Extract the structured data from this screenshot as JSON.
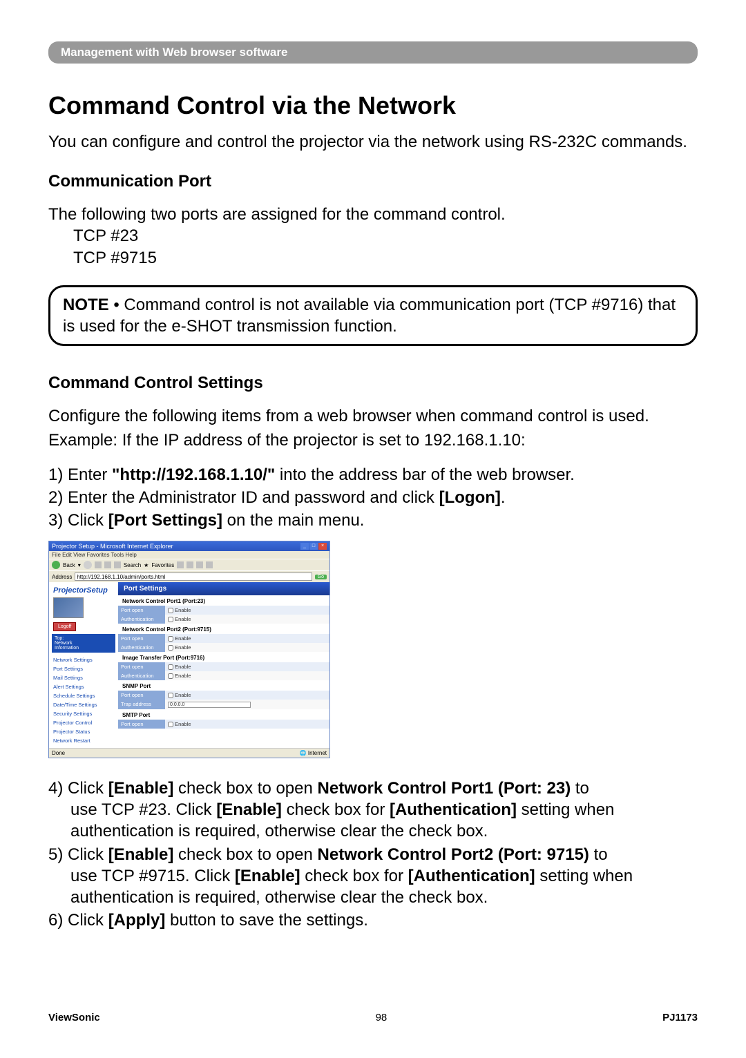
{
  "banner": "Management with Web browser software",
  "title": "Command Control via the Network",
  "intro": "You can configure and control the projector via the network using RS-232C commands.",
  "section_comm_port": {
    "heading": "Communication Port",
    "lead": "The following two ports are assigned for the command control.",
    "ports": [
      "TCP #23",
      "TCP #9715"
    ]
  },
  "note": {
    "label": "NOTE",
    "body": " • Command control is not available via communication port (TCP #9716) that is used for the e-SHOT transmission function."
  },
  "section_settings": {
    "heading": "Command Control Settings",
    "para1": "Configure the following items from a web browser when command control is used.",
    "para2": "Example: If the IP address of the projector is set to 192.168.1.10:",
    "steps_a": [
      {
        "n": "1)",
        "pre": " Enter ",
        "bold": "\"http://192.168.1.10/\"",
        "post": " into the address bar of the web browser."
      },
      {
        "n": "2)",
        "pre": " Enter the Administrator ID and password and click ",
        "bold": "[Logon]",
        "post": "."
      },
      {
        "n": "3)",
        "pre": " Click ",
        "bold": "[Port Settings]",
        "post": " on the main menu."
      }
    ],
    "steps_b": [
      {
        "n": "4)",
        "l1_pre": " Click ",
        "l1_b1": "[Enable]",
        "l1_mid": " check box to open ",
        "l1_b2": "Network Control Port1 (Port: 23)",
        "l1_post": " to",
        "l2_pre": "use TCP #23. Click ",
        "l2_b1": "[Enable]",
        "l2_mid": " check box for ",
        "l2_b2": "[Authentication]",
        "l2_post": " setting when",
        "l3": "authentication is required, otherwise clear the check box."
      },
      {
        "n": "5)",
        "l1_pre": " Click ",
        "l1_b1": "[Enable]",
        "l1_mid": " check box to open ",
        "l1_b2": "Network Control Port2 (Port: 9715)",
        "l1_post": " to",
        "l2_pre": "use TCP #9715. Click ",
        "l2_b1": "[Enable]",
        "l2_mid": " check box for ",
        "l2_b2": "[Authentication]",
        "l2_post": " setting when",
        "l3": "authentication is required, otherwise clear the check box."
      },
      {
        "n": "6)",
        "l1_pre": " Click ",
        "l1_b1": "[Apply]",
        "l1_mid": " button to save the settings.",
        "l1_b2": "",
        "l1_post": ""
      }
    ]
  },
  "screenshot": {
    "title": "Projector Setup - Microsoft Internet Explorer",
    "menus": "File   Edit   View   Favorites   Tools   Help",
    "toolbar": {
      "back": "Back",
      "search": "Search",
      "favorites": "Favorites"
    },
    "address_label": "Address",
    "address_value": "http://192.168.1.10/admin/ports.html",
    "go": "Go",
    "sidebar": {
      "brand": "ProjectorSetup",
      "logoff": "Logoff",
      "panel": "Top:\nNetwork\nInformation",
      "items": [
        "Network Settings",
        "Port Settings",
        "Mail Settings",
        "Alert Settings",
        "Schedule Settings",
        "Date/Time Settings",
        "Security Settings",
        "Projector Control",
        "Projector Status",
        "Network Restart"
      ]
    },
    "main": {
      "header": "Port Settings",
      "sections": [
        {
          "title": "Network Control Port1 (Port:23)",
          "rows": [
            {
              "lbl": "Port open",
              "val": "Enable",
              "cb": true
            },
            {
              "lbl": "Authentication",
              "val": "Enable",
              "cb": true
            }
          ]
        },
        {
          "title": "Network Control Port2 (Port:9715)",
          "rows": [
            {
              "lbl": "Port open",
              "val": "Enable",
              "cb": true
            },
            {
              "lbl": "Authentication",
              "val": "Enable",
              "cb": true
            }
          ]
        },
        {
          "title": "Image Transfer Port (Port:9716)",
          "rows": [
            {
              "lbl": "Port open",
              "val": "Enable",
              "cb": true
            },
            {
              "lbl": "Authentication",
              "val": "Enable",
              "cb": true
            }
          ]
        },
        {
          "title": "SNMP Port",
          "rows": [
            {
              "lbl": "Port open",
              "val": "Enable",
              "cb": true
            },
            {
              "lbl": "Trap address",
              "val": "0.0.0.0",
              "cb": false,
              "field": true
            }
          ]
        },
        {
          "title": "SMTP Port",
          "rows": [
            {
              "lbl": "Port open",
              "val": "Enable",
              "cb": true
            }
          ]
        }
      ]
    },
    "status_left": "Done",
    "status_right": "Internet"
  },
  "footer": {
    "brand": "ViewSonic",
    "page": "98",
    "model": "PJ1173"
  }
}
